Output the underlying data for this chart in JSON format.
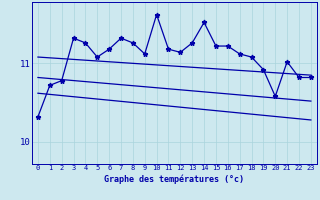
{
  "xlabel": "Graphe des températures (°c)",
  "bg_color": "#cde8ef",
  "line_color": "#0000aa",
  "grid_color": "#aad4dd",
  "x_ticks": [
    0,
    1,
    2,
    3,
    4,
    5,
    6,
    7,
    8,
    9,
    10,
    11,
    12,
    13,
    14,
    15,
    16,
    17,
    18,
    19,
    20,
    21,
    22,
    23
  ],
  "ylim": [
    9.72,
    11.78
  ],
  "yticks": [
    10,
    11
  ],
  "series1_x": [
    0,
    1,
    2,
    3,
    4,
    5,
    6,
    7,
    8,
    9,
    10,
    11,
    12,
    13,
    14,
    15,
    16,
    17,
    18,
    19,
    20,
    21,
    22,
    23
  ],
  "series1_y": [
    10.32,
    10.72,
    10.78,
    11.32,
    11.26,
    11.08,
    11.18,
    11.32,
    11.26,
    11.12,
    11.62,
    11.18,
    11.14,
    11.26,
    11.52,
    11.22,
    11.22,
    11.12,
    11.08,
    10.92,
    10.58,
    11.02,
    10.82,
    10.82
  ],
  "trend1_x": [
    0,
    23
  ],
  "trend1_y": [
    11.08,
    10.85
  ],
  "trend2_x": [
    0,
    23
  ],
  "trend2_y": [
    10.82,
    10.52
  ],
  "trend3_x": [
    0,
    23
  ],
  "trend3_y": [
    10.62,
    10.28
  ],
  "marker_size": 3.5,
  "lw": 0.9,
  "xlabel_fontsize": 6.0,
  "xtick_fontsize": 5.0,
  "ytick_fontsize": 6.5
}
